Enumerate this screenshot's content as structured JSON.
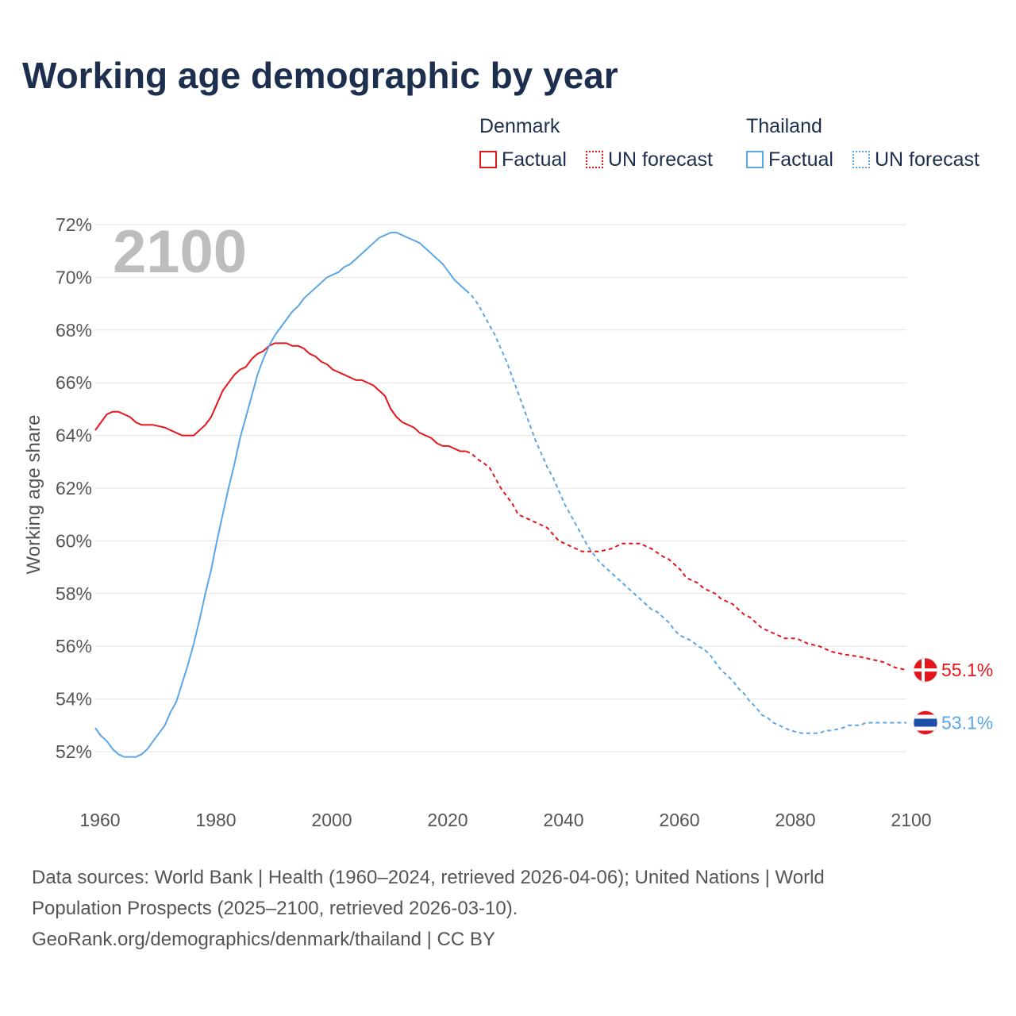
{
  "title": "Working age demographic by year",
  "legend": {
    "groups": [
      {
        "name": "Denmark",
        "factual": "Factual",
        "forecast": "UN forecast",
        "color": "#e4161c"
      },
      {
        "name": "Thailand",
        "factual": "Factual",
        "forecast": "UN forecast",
        "color": "#5aa6e6"
      }
    ]
  },
  "source": {
    "line1": "Data sources: World Bank | Health (1960–2024, retrieved 2026-04-06); United Nations | World",
    "line2": "Population Prospects (2025–2100, retrieved 2026-03-10).",
    "line3": "GeoRank.org/demographics/denmark/thailand | CC BY"
  },
  "chart_data": {
    "type": "line",
    "title": "Working age demographic by year",
    "year_watermark": "2100",
    "xlabel": "",
    "ylabel": "Working age share",
    "xlim": [
      1960,
      2100
    ],
    "ylim": [
      51,
      72
    ],
    "x_ticks": [
      1960,
      1980,
      2000,
      2020,
      2040,
      2060,
      2080,
      2100
    ],
    "y_ticks": [
      52,
      54,
      56,
      58,
      60,
      62,
      64,
      66,
      68,
      70,
      72
    ],
    "y_tick_suffix": "%",
    "grid": true,
    "factual_end_year": 2024,
    "series": [
      {
        "name": "Denmark",
        "color": "#e4161c",
        "end_label": "55.1%",
        "points": [
          [
            1960,
            64.2
          ],
          [
            1961,
            64.5
          ],
          [
            1962,
            64.8
          ],
          [
            1963,
            64.9
          ],
          [
            1964,
            64.9
          ],
          [
            1965,
            64.8
          ],
          [
            1966,
            64.7
          ],
          [
            1967,
            64.5
          ],
          [
            1968,
            64.4
          ],
          [
            1970,
            64.4
          ],
          [
            1972,
            64.3
          ],
          [
            1974,
            64.1
          ],
          [
            1975,
            64.0
          ],
          [
            1977,
            64.0
          ],
          [
            1979,
            64.4
          ],
          [
            1980,
            64.7
          ],
          [
            1981,
            65.2
          ],
          [
            1982,
            65.7
          ],
          [
            1983,
            66.0
          ],
          [
            1984,
            66.3
          ],
          [
            1985,
            66.5
          ],
          [
            1986,
            66.6
          ],
          [
            1987,
            66.9
          ],
          [
            1988,
            67.1
          ],
          [
            1989,
            67.2
          ],
          [
            1990,
            67.4
          ],
          [
            1991,
            67.5
          ],
          [
            1992,
            67.5
          ],
          [
            1993,
            67.5
          ],
          [
            1994,
            67.4
          ],
          [
            1995,
            67.4
          ],
          [
            1996,
            67.3
          ],
          [
            1997,
            67.1
          ],
          [
            1998,
            67.0
          ],
          [
            1999,
            66.8
          ],
          [
            2000,
            66.7
          ],
          [
            2001,
            66.5
          ],
          [
            2003,
            66.3
          ],
          [
            2005,
            66.1
          ],
          [
            2006,
            66.1
          ],
          [
            2008,
            65.9
          ],
          [
            2010,
            65.5
          ],
          [
            2011,
            65.0
          ],
          [
            2012,
            64.7
          ],
          [
            2013,
            64.5
          ],
          [
            2015,
            64.3
          ],
          [
            2016,
            64.1
          ],
          [
            2018,
            63.9
          ],
          [
            2019,
            63.7
          ],
          [
            2020,
            63.6
          ],
          [
            2021,
            63.6
          ],
          [
            2022,
            63.5
          ],
          [
            2023,
            63.4
          ],
          [
            2024,
            63.4
          ],
          [
            2025,
            63.3
          ],
          [
            2026,
            63.1
          ],
          [
            2028,
            62.8
          ],
          [
            2030,
            62.0
          ],
          [
            2032,
            61.4
          ],
          [
            2033,
            61.0
          ],
          [
            2035,
            60.8
          ],
          [
            2036,
            60.7
          ],
          [
            2038,
            60.5
          ],
          [
            2040,
            60.0
          ],
          [
            2041,
            59.9
          ],
          [
            2043,
            59.7
          ],
          [
            2044,
            59.6
          ],
          [
            2047,
            59.6
          ],
          [
            2049,
            59.7
          ],
          [
            2051,
            59.9
          ],
          [
            2054,
            59.9
          ],
          [
            2056,
            59.7
          ],
          [
            2058,
            59.4
          ],
          [
            2059,
            59.3
          ],
          [
            2061,
            58.9
          ],
          [
            2062,
            58.6
          ],
          [
            2064,
            58.4
          ],
          [
            2065,
            58.2
          ],
          [
            2067,
            58.0
          ],
          [
            2068,
            57.8
          ],
          [
            2070,
            57.6
          ],
          [
            2072,
            57.2
          ],
          [
            2073,
            57.1
          ],
          [
            2075,
            56.7
          ],
          [
            2076,
            56.6
          ],
          [
            2078,
            56.4
          ],
          [
            2079,
            56.3
          ],
          [
            2081,
            56.3
          ],
          [
            2083,
            56.1
          ],
          [
            2085,
            56.0
          ],
          [
            2087,
            55.8
          ],
          [
            2089,
            55.7
          ],
          [
            2092,
            55.6
          ],
          [
            2094,
            55.5
          ],
          [
            2096,
            55.4
          ],
          [
            2098,
            55.2
          ],
          [
            2100,
            55.1
          ]
        ]
      },
      {
        "name": "Thailand",
        "color": "#5aa6e6",
        "end_label": "53.1%",
        "points": [
          [
            1960,
            52.9
          ],
          [
            1961,
            52.6
          ],
          [
            1962,
            52.4
          ],
          [
            1963,
            52.1
          ],
          [
            1964,
            51.9
          ],
          [
            1965,
            51.8
          ],
          [
            1967,
            51.8
          ],
          [
            1968,
            51.9
          ],
          [
            1969,
            52.1
          ],
          [
            1970,
            52.4
          ],
          [
            1971,
            52.7
          ],
          [
            1972,
            53.0
          ],
          [
            1973,
            53.5
          ],
          [
            1974,
            53.9
          ],
          [
            1975,
            54.6
          ],
          [
            1976,
            55.3
          ],
          [
            1977,
            56.1
          ],
          [
            1978,
            57.0
          ],
          [
            1979,
            58.0
          ],
          [
            1980,
            58.9
          ],
          [
            1981,
            60.0
          ],
          [
            1982,
            61.0
          ],
          [
            1983,
            62.0
          ],
          [
            1984,
            62.9
          ],
          [
            1985,
            63.9
          ],
          [
            1986,
            64.7
          ],
          [
            1987,
            65.5
          ],
          [
            1988,
            66.3
          ],
          [
            1989,
            66.9
          ],
          [
            1990,
            67.4
          ],
          [
            1991,
            67.8
          ],
          [
            1992,
            68.1
          ],
          [
            1993,
            68.4
          ],
          [
            1994,
            68.7
          ],
          [
            1995,
            68.9
          ],
          [
            1996,
            69.2
          ],
          [
            1997,
            69.4
          ],
          [
            1998,
            69.6
          ],
          [
            1999,
            69.8
          ],
          [
            2000,
            70.0
          ],
          [
            2002,
            70.2
          ],
          [
            2003,
            70.4
          ],
          [
            2004,
            70.5
          ],
          [
            2005,
            70.7
          ],
          [
            2006,
            70.9
          ],
          [
            2007,
            71.1
          ],
          [
            2008,
            71.3
          ],
          [
            2009,
            71.5
          ],
          [
            2010,
            71.6
          ],
          [
            2011,
            71.7
          ],
          [
            2012,
            71.7
          ],
          [
            2013,
            71.6
          ],
          [
            2014,
            71.5
          ],
          [
            2015,
            71.4
          ],
          [
            2016,
            71.3
          ],
          [
            2017,
            71.1
          ],
          [
            2018,
            70.9
          ],
          [
            2019,
            70.7
          ],
          [
            2020,
            70.5
          ],
          [
            2021,
            70.2
          ],
          [
            2022,
            69.9
          ],
          [
            2023,
            69.7
          ],
          [
            2024,
            69.5
          ],
          [
            2025,
            69.3
          ],
          [
            2026,
            69.0
          ],
          [
            2027,
            68.6
          ],
          [
            2028,
            68.2
          ],
          [
            2029,
            67.8
          ],
          [
            2030,
            67.3
          ],
          [
            2031,
            66.8
          ],
          [
            2032,
            66.2
          ],
          [
            2033,
            65.6
          ],
          [
            2034,
            65.0
          ],
          [
            2035,
            64.4
          ],
          [
            2036,
            63.8
          ],
          [
            2037,
            63.3
          ],
          [
            2038,
            62.8
          ],
          [
            2039,
            62.4
          ],
          [
            2040,
            61.9
          ],
          [
            2041,
            61.4
          ],
          [
            2042,
            61.0
          ],
          [
            2043,
            60.6
          ],
          [
            2044,
            60.2
          ],
          [
            2045,
            59.8
          ],
          [
            2046,
            59.5
          ],
          [
            2047,
            59.2
          ],
          [
            2048,
            59.0
          ],
          [
            2049,
            58.8
          ],
          [
            2050,
            58.6
          ],
          [
            2051,
            58.4
          ],
          [
            2052,
            58.2
          ],
          [
            2053,
            58.0
          ],
          [
            2054,
            57.8
          ],
          [
            2055,
            57.6
          ],
          [
            2056,
            57.4
          ],
          [
            2057,
            57.3
          ],
          [
            2058,
            57.1
          ],
          [
            2059,
            56.9
          ],
          [
            2060,
            56.6
          ],
          [
            2061,
            56.4
          ],
          [
            2062,
            56.3
          ],
          [
            2063,
            56.2
          ],
          [
            2064,
            56.0
          ],
          [
            2065,
            55.9
          ],
          [
            2066,
            55.7
          ],
          [
            2067,
            55.4
          ],
          [
            2068,
            55.1
          ],
          [
            2069,
            54.9
          ],
          [
            2070,
            54.7
          ],
          [
            2071,
            54.4
          ],
          [
            2072,
            54.2
          ],
          [
            2073,
            53.9
          ],
          [
            2074,
            53.7
          ],
          [
            2075,
            53.4
          ],
          [
            2076,
            53.3
          ],
          [
            2077,
            53.1
          ],
          [
            2078,
            53.0
          ],
          [
            2079,
            52.9
          ],
          [
            2080,
            52.8
          ],
          [
            2082,
            52.7
          ],
          [
            2085,
            52.7
          ],
          [
            2086,
            52.8
          ],
          [
            2087,
            52.8
          ],
          [
            2089,
            52.9
          ],
          [
            2090,
            53.0
          ],
          [
            2092,
            53.0
          ],
          [
            2093,
            53.1
          ],
          [
            2100,
            53.1
          ]
        ]
      }
    ]
  }
}
